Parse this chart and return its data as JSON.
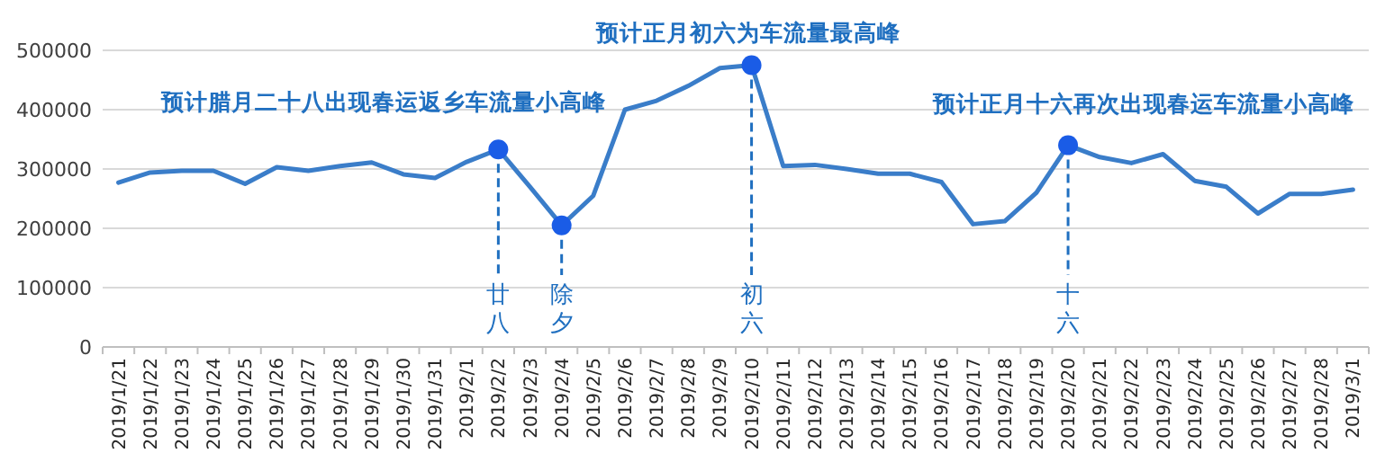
{
  "chart_data": {
    "type": "line",
    "categories": [
      "2019/1/21",
      "2019/1/22",
      "2019/1/23",
      "2019/1/24",
      "2019/1/25",
      "2019/1/26",
      "2019/1/27",
      "2019/1/28",
      "2019/1/29",
      "2019/1/30",
      "2019/1/31",
      "2019/2/1",
      "2019/2/2",
      "2019/2/3",
      "2019/2/4",
      "2019/2/5",
      "2019/2/6",
      "2019/2/7",
      "2019/2/8",
      "2019/2/9",
      "2019/2/10",
      "2019/2/11",
      "2019/2/12",
      "2019/2/13",
      "2019/2/14",
      "2019/2/15",
      "2019/2/16",
      "2019/2/17",
      "2019/2/18",
      "2019/2/19",
      "2019/2/20",
      "2019/2/21",
      "2019/2/22",
      "2019/2/23",
      "2019/2/24",
      "2019/2/25",
      "2019/2/26",
      "2019/2/27",
      "2019/2/28",
      "2019/3/1"
    ],
    "series": [
      {
        "color": "#3a7dc9",
        "marker": "none",
        "values": [
          277000,
          294000,
          297000,
          297000,
          275000,
          303000,
          297000,
          305000,
          311000,
          291000,
          285000,
          312000,
          333000,
          270000,
          205000,
          255000,
          400000,
          415000,
          440000,
          470000,
          475000,
          305000,
          307000,
          300000,
          292000,
          292000,
          278000,
          207000,
          212000,
          260000,
          340000,
          320000,
          310000,
          325000,
          280000,
          270000,
          225000,
          258000,
          258000,
          265000
        ]
      },
      {
        "type": "scatter",
        "marker": "circle",
        "color": "#1a5ce6",
        "x": [
          "2019/2/2",
          "2019/2/4",
          "2019/2/10",
          "2019/2/20"
        ],
        "values": [
          333000,
          205000,
          475000,
          340000
        ]
      }
    ],
    "ylim": [
      0,
      500000
    ],
    "yticks": [
      0,
      100000,
      200000,
      300000,
      400000,
      500000
    ],
    "grid": "y",
    "ref_lines": [
      {
        "axis": "x",
        "value": "2019/2/2",
        "label": "廿八",
        "color": "#1f6fc0",
        "line_style": "dashed"
      },
      {
        "axis": "x",
        "value": "2019/2/4",
        "label": "除夕",
        "color": "#1f6fc0",
        "line_style": "dashed"
      },
      {
        "axis": "x",
        "value": "2019/2/10",
        "label": "初六",
        "color": "#1f6fc0",
        "line_style": "dashed"
      },
      {
        "axis": "x",
        "value": "2019/2/20",
        "label": "十六",
        "color": "#1f6fc0",
        "line_style": "dashed"
      }
    ],
    "annotations": [
      {
        "text": "预计腊月二十八出现春运返乡车流量小高峰",
        "x": "2019/2/2",
        "y": 333000
      },
      {
        "text": "预计正月初六为车流量最高峰",
        "x": "2019/2/10",
        "y": 475000
      },
      {
        "text": "预计正月十六再次出现春运车流量小高峰",
        "x": "2019/2/20",
        "y": 340000
      }
    ]
  }
}
